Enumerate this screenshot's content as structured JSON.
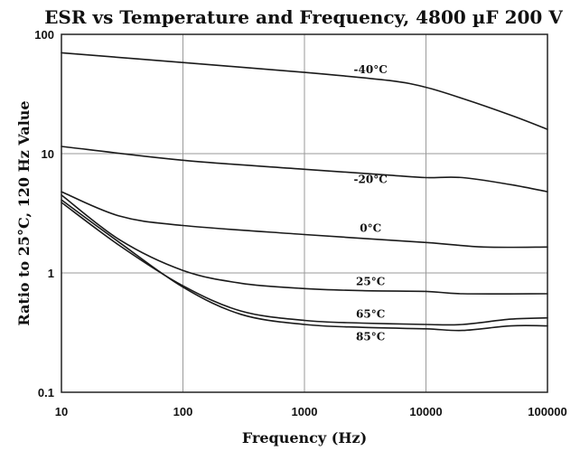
{
  "chart_data": {
    "type": "line",
    "title": "ESR vs Temperature and Frequency,  4800 µF  200 V",
    "xlabel": "Frequency (Hz)",
    "ylabel": "Ratio to 25°C, 120 Hz Value",
    "x_scale": "log",
    "y_scale": "log",
    "xlim": [
      10,
      100000
    ],
    "ylim": [
      0.1,
      100
    ],
    "grid": true,
    "x_ticks": [
      "10",
      "100",
      "1000",
      "10000",
      "100000"
    ],
    "y_ticks": [
      "0.1",
      "1",
      "10",
      "100"
    ],
    "series": [
      {
        "name": "-40°C",
        "x": [
          10,
          100,
          1000,
          5000,
          10000,
          20000,
          50000,
          100000
        ],
        "y": [
          70,
          58,
          48,
          41,
          36,
          29,
          21,
          16
        ]
      },
      {
        "name": "-20°C",
        "x": [
          10,
          100,
          1000,
          5000,
          10000,
          20000,
          50000,
          100000
        ],
        "y": [
          11.5,
          8.8,
          7.4,
          6.6,
          6.3,
          6.3,
          5.5,
          4.8
        ]
      },
      {
        "name": "0°C",
        "x": [
          10,
          30,
          100,
          1000,
          10000,
          30000,
          100000
        ],
        "y": [
          4.8,
          3.0,
          2.5,
          2.1,
          1.8,
          1.65,
          1.65
        ]
      },
      {
        "name": "25°C",
        "x": [
          10,
          30,
          100,
          300,
          1000,
          3000,
          10000,
          20000,
          100000
        ],
        "y": [
          4.5,
          1.9,
          1.05,
          0.82,
          0.74,
          0.71,
          0.7,
          0.67,
          0.67
        ]
      },
      {
        "name": "65°C",
        "x": [
          10,
          30,
          100,
          300,
          1000,
          3000,
          10000,
          20000,
          50000,
          100000
        ],
        "y": [
          3.9,
          1.7,
          0.78,
          0.48,
          0.4,
          0.38,
          0.37,
          0.37,
          0.41,
          0.42
        ]
      },
      {
        "name": "85°C",
        "x": [
          10,
          30,
          100,
          300,
          1000,
          3000,
          10000,
          20000,
          50000,
          100000
        ],
        "y": [
          4.1,
          1.8,
          0.76,
          0.45,
          0.37,
          0.35,
          0.34,
          0.33,
          0.36,
          0.36
        ]
      }
    ],
    "annotations": [
      {
        "text": "-40°C",
        "series": "-40°C"
      },
      {
        "text": "-20°C",
        "series": "-20°C"
      },
      {
        "text": "0°C",
        "series": "0°C"
      },
      {
        "text": "25°C",
        "series": "25°C"
      },
      {
        "text": "65°C",
        "series": "65°C"
      },
      {
        "text": "85°C",
        "series": "85°C"
      }
    ],
    "line_color": "#1a1a1a"
  }
}
